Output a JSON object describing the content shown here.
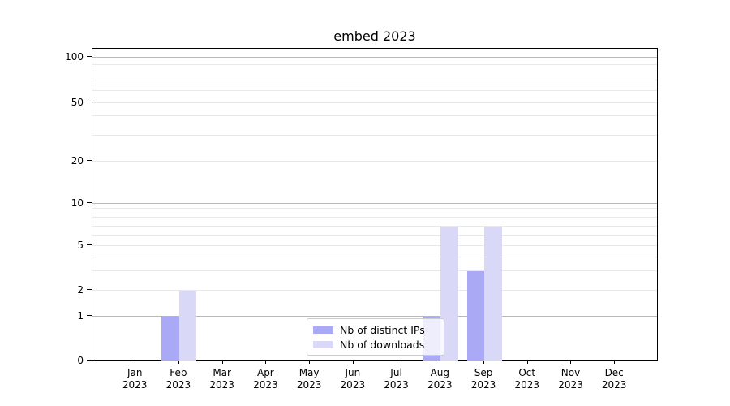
{
  "title": "embed 2023",
  "chart_data": {
    "type": "bar",
    "title": "embed 2023",
    "categories": [
      "Jan 2023",
      "Feb 2023",
      "Mar 2023",
      "Apr 2023",
      "May 2023",
      "Jun 2023",
      "Jul 2023",
      "Aug 2023",
      "Sep 2023",
      "Oct 2023",
      "Nov 2023",
      "Dec 2023"
    ],
    "x_tick_months": [
      "Jan",
      "Feb",
      "Mar",
      "Apr",
      "May",
      "Jun",
      "Jul",
      "Aug",
      "Sep",
      "Oct",
      "Nov",
      "Dec"
    ],
    "x_tick_year": "2023",
    "series": [
      {
        "name": "Nb of distinct IPs",
        "color": "#a9a9f5",
        "values": [
          0,
          1,
          0,
          0,
          0,
          0,
          0,
          1,
          3,
          0,
          0,
          0
        ]
      },
      {
        "name": "Nb of downloads",
        "color": "#d9d9f7",
        "values": [
          0,
          2,
          0,
          0,
          0,
          0,
          0,
          7,
          7,
          0,
          0,
          0
        ]
      }
    ],
    "yaxis": {
      "ticks": [
        0,
        1,
        2,
        5,
        10,
        20,
        50,
        100
      ],
      "range": [
        0,
        100
      ],
      "scale": "log-like"
    },
    "grid": {
      "major_values": [
        1,
        10,
        100
      ],
      "minor_values": [
        2,
        3,
        4,
        5,
        6,
        7,
        8,
        9,
        20,
        30,
        40,
        50,
        60,
        70,
        80,
        90
      ],
      "major_color": "#b9b9b9",
      "minor_color": "#e8e8e8"
    },
    "legend_position": "lower-center"
  }
}
